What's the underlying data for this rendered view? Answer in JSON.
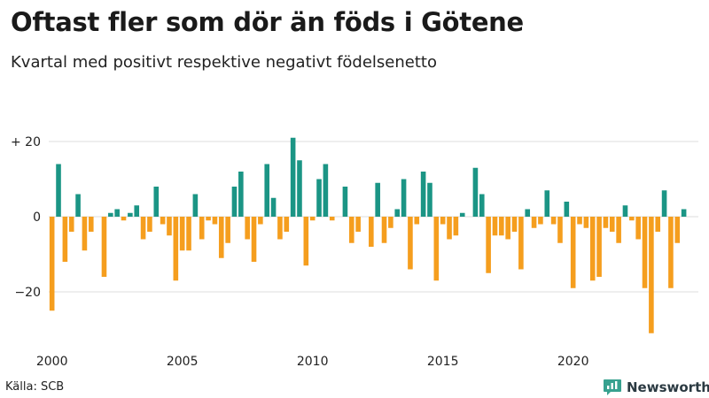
{
  "title": "Oftast fler som dör än föds i Götene",
  "subtitle": "Kvartal med positivt respektive negativt födelsenetto",
  "source": "Källa: SCB",
  "brand": {
    "name": "Newsworthy",
    "logo_icon": "bar-chart-speech-icon",
    "color": "#37a18f"
  },
  "colors": {
    "positive": "#1b9585",
    "negative": "#f59e1e",
    "grid": "#dcdcdc"
  },
  "chart_data": {
    "type": "bar",
    "title": "Oftast fler som dör än föds i Götene",
    "subtitle": "Kvartal med positivt respektive negativt födelsenetto",
    "xlabel": "",
    "ylabel": "",
    "ylim": [
      -33,
      22
    ],
    "grid": true,
    "y_ticks": [
      20,
      0,
      -20
    ],
    "y_tick_labels": [
      "+ 20",
      "0",
      "−20"
    ],
    "x_ticks": [
      2000,
      2005,
      2010,
      2015,
      2020
    ],
    "x_tick_labels": [
      "2000",
      "2005",
      "2010",
      "2015",
      "2020"
    ],
    "start_year": 2000,
    "periods_per_year": 4,
    "values": [
      -25,
      14,
      -12,
      -4,
      6,
      -9,
      -4,
      0,
      -16,
      1,
      2,
      -1,
      1,
      3,
      -6,
      -4,
      8,
      -2,
      -5,
      -17,
      -9,
      -9,
      6,
      -6,
      -1,
      -2,
      -11,
      -7,
      8,
      12,
      -6,
      -12,
      -2,
      14,
      5,
      -6,
      -4,
      21,
      15,
      -13,
      -1,
      10,
      14,
      -1,
      0,
      8,
      -7,
      -4,
      0,
      -8,
      9,
      -7,
      -3,
      2,
      10,
      -14,
      -2,
      12,
      9,
      -17,
      -2,
      -6,
      -5,
      1,
      0,
      13,
      6,
      -15,
      -5,
      -5,
      -6,
      -4,
      -14,
      2,
      -3,
      -2,
      7,
      -2,
      -7,
      4,
      -19,
      -2,
      -3,
      -17,
      -16,
      -3,
      -4,
      -7,
      3,
      -1,
      -6,
      -19,
      -31,
      -4,
      7,
      -19,
      -7,
      2
    ]
  }
}
